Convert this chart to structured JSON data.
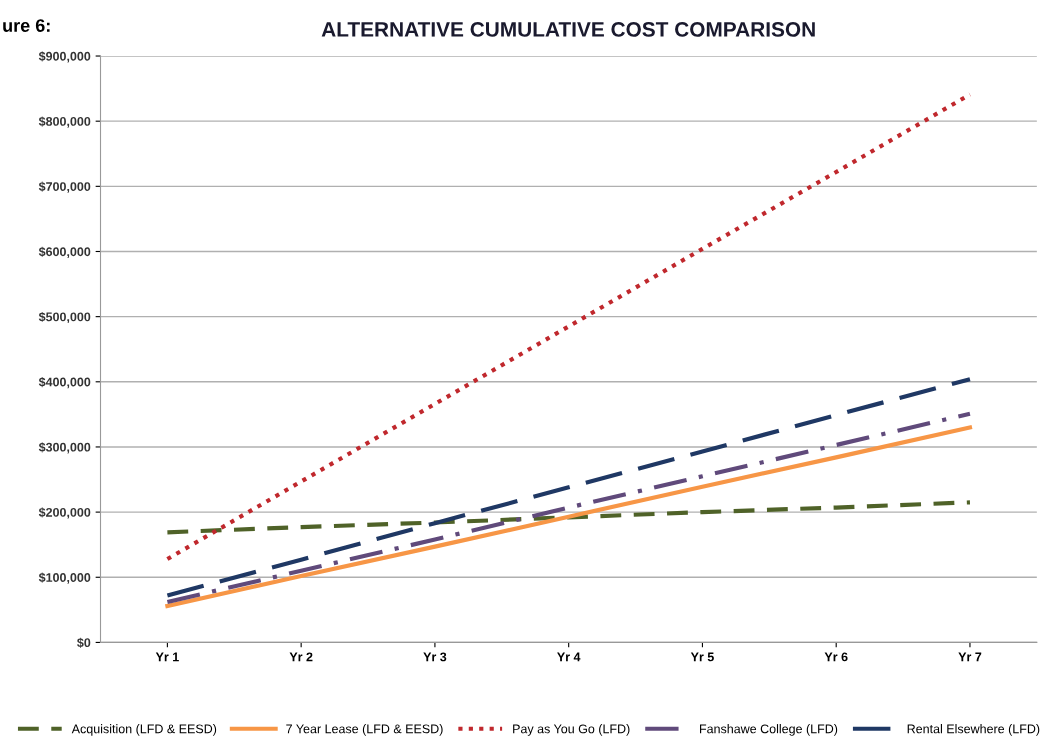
{
  "chart_data": {
    "type": "line",
    "title": "ALTERNATIVE CUMULATIVE COST COMPARISON",
    "annotations": [
      "ure 6:"
    ],
    "categories": [
      "Yr 1",
      "Yr 2",
      "Yr 3",
      "Yr 4",
      "Yr 5",
      "Yr 6",
      "Yr 7"
    ],
    "series": [
      {
        "name": "Acquisition (LFD & EESD)",
        "color": "#4f6228",
        "line_style": "dashed",
        "values": [
          169000,
          177000,
          184000,
          192000,
          200000,
          207000,
          215000
        ]
      },
      {
        "name": "7 Year Lease (LFD & EESD)",
        "color": "#f79646",
        "line_style": "solid",
        "values": [
          56000,
          102000,
          147000,
          193000,
          239000,
          284000,
          330000
        ]
      },
      {
        "name": "Pay as You Go (LFD)",
        "color": "#c0282d",
        "line_style": "dotted",
        "values": [
          128000,
          247000,
          366000,
          485000,
          604000,
          722000,
          841000
        ]
      },
      {
        "name": "Fanshawe College (LFD)",
        "color": "#604a7b",
        "line_style": "dashdot",
        "values": [
          62000,
          110000,
          158000,
          207000,
          255000,
          303000,
          351000
        ]
      },
      {
        "name": "Rental Elsewhere (LFD)",
        "color": "#1f3864",
        "line_style": "longdash",
        "values": [
          72000,
          127000,
          183000,
          238000,
          293000,
          349000,
          404000
        ]
      }
    ],
    "ylim": [
      0,
      900000
    ],
    "yticks": [
      {
        "value": 0,
        "label": "$0"
      },
      {
        "value": 100000,
        "label": "$100,000"
      },
      {
        "value": 200000,
        "label": "$200,000"
      },
      {
        "value": 300000,
        "label": "$300,000"
      },
      {
        "value": 400000,
        "label": "$400,000"
      },
      {
        "value": 500000,
        "label": "$500,000"
      },
      {
        "value": 600000,
        "label": "$600,000"
      },
      {
        "value": 700000,
        "label": "$700,000"
      },
      {
        "value": 800000,
        "label": "$800,000"
      },
      {
        "value": 900000,
        "label": "$900,000"
      }
    ],
    "grid": "y",
    "legend": "bottom",
    "marker": "none"
  }
}
